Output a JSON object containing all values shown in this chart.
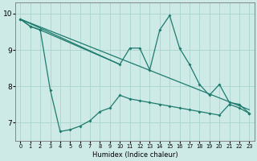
{
  "bg_color": "#cdeae6",
  "line_color": "#1e7b6e",
  "grid_color": "#aad4ce",
  "xlabel": "Humidex (Indice chaleur)",
  "xlim": [
    -0.5,
    23.5
  ],
  "ylim": [
    6.5,
    10.3
  ],
  "yticks": [
    7,
    8,
    9,
    10
  ],
  "series": [
    {
      "name": "straight_top",
      "x": [
        0,
        1,
        2,
        3,
        4,
        5,
        6,
        7,
        8,
        9,
        10,
        17
      ],
      "y": [
        9.85,
        9.65,
        9.55,
        9.45,
        9.35,
        9.25,
        9.15,
        9.05,
        8.95,
        8.85,
        8.75,
        8.1
      ],
      "markers": false,
      "lw": 0.9
    },
    {
      "name": "straight_bottom",
      "x": [
        0,
        23
      ],
      "y": [
        9.85,
        7.35
      ],
      "markers": false,
      "lw": 0.9
    },
    {
      "name": "zigzag_high",
      "x": [
        0,
        1,
        2,
        10,
        11,
        12,
        13,
        14,
        15,
        16,
        17,
        18,
        19,
        20,
        21,
        22,
        23
      ],
      "y": [
        9.85,
        9.65,
        9.55,
        8.6,
        9.05,
        9.05,
        8.45,
        9.55,
        9.95,
        9.05,
        8.6,
        8.05,
        7.75,
        8.05,
        7.55,
        7.5,
        7.25
      ],
      "markers": true,
      "lw": 0.9
    },
    {
      "name": "zigzag_low",
      "x": [
        0,
        1,
        2,
        3,
        4,
        5,
        6,
        7,
        8,
        9,
        10,
        11,
        12,
        13,
        14,
        15,
        16,
        17,
        18,
        19,
        20,
        21,
        22,
        23
      ],
      "y": [
        9.85,
        9.65,
        9.55,
        7.9,
        6.75,
        6.8,
        6.9,
        7.05,
        7.3,
        7.4,
        7.75,
        7.65,
        7.6,
        7.55,
        7.5,
        7.45,
        7.4,
        7.35,
        7.3,
        7.25,
        7.2,
        7.5,
        7.4,
        7.25
      ],
      "markers": true,
      "lw": 0.9
    }
  ]
}
